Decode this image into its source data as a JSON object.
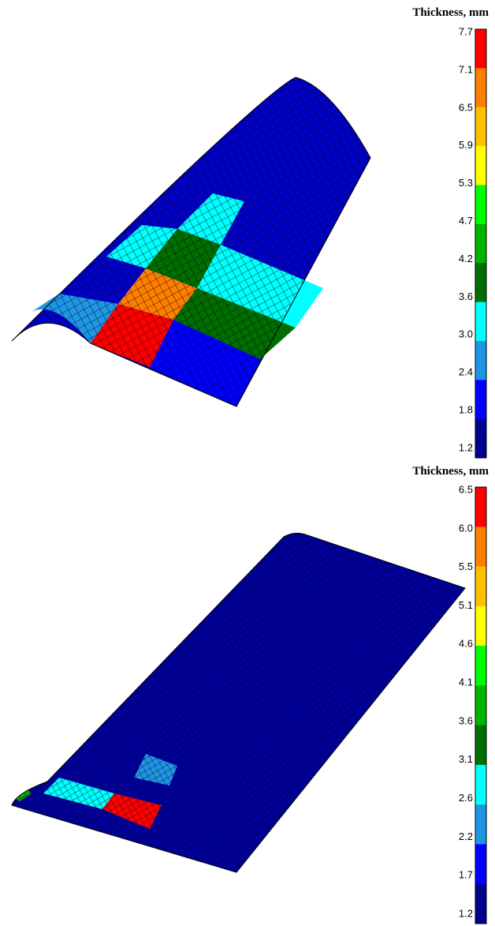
{
  "figures": [
    {
      "legend": {
        "title": "Thickness, mm",
        "labels": [
          "7.7",
          "7.1",
          "6.5",
          "5.9",
          "5.3",
          "4.7",
          "4.2",
          "3.6",
          "3.0",
          "2.4",
          "1.8",
          "1.2"
        ],
        "colors": [
          "#ff0000",
          "#ff8000",
          "#ffc000",
          "#ffff00",
          "#00ff00",
          "#00b400",
          "#006e00",
          "#00ffff",
          "#1e96e6",
          "#0000ff",
          "#00008c"
        ]
      }
    },
    {
      "legend": {
        "title": "Thickness, mm",
        "labels": [
          "6.5",
          "6.0",
          "5.5",
          "5.1",
          "4.6",
          "4.1",
          "3.6",
          "3.1",
          "2.6",
          "2.2",
          "1.7",
          "1.2"
        ],
        "colors": [
          "#ff0000",
          "#ff8000",
          "#ffc000",
          "#ffff00",
          "#00ff00",
          "#00b400",
          "#006e00",
          "#00ffff",
          "#1e96e6",
          "#0000ff",
          "#00008c"
        ]
      }
    }
  ]
}
